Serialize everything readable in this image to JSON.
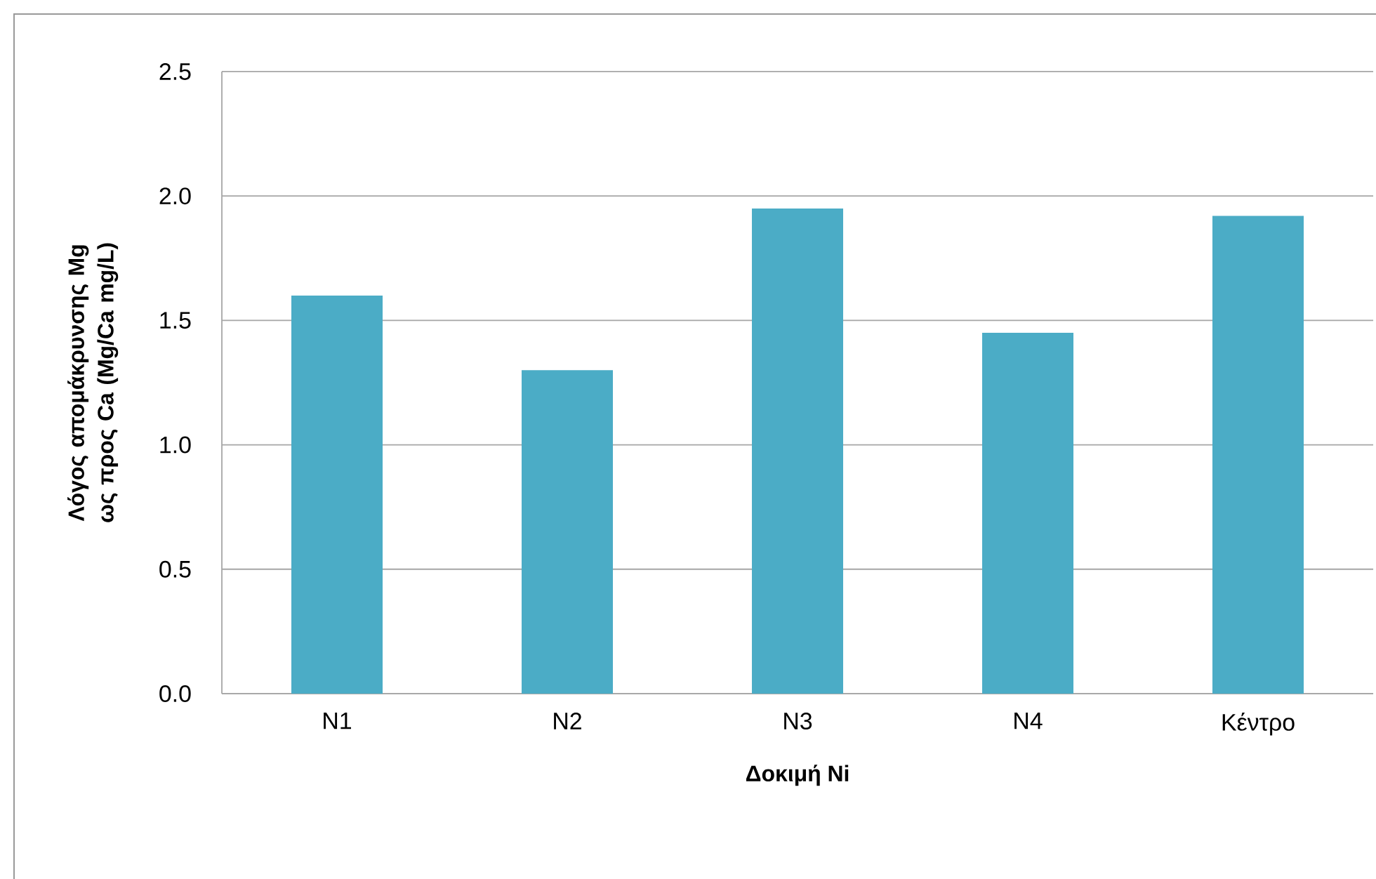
{
  "chart_data": {
    "type": "bar",
    "xlabel": "Δοκιμή Ni",
    "ylabel": "Λόγος απομάκρυνσης Mg  ως προς Ca (Mg/Ca mg/L)",
    "categories": [
      "N1",
      "N2",
      "N3",
      "N4",
      "Κέντρο"
    ],
    "values": [
      1.6,
      1.3,
      1.95,
      1.45,
      1.92
    ],
    "color": "#4bacc6",
    "ylim": [
      0,
      2.5
    ],
    "yticks": [
      {
        "value": 0,
        "label": "0.0"
      },
      {
        "value": 0.5,
        "label": "0.5"
      },
      {
        "value": 1,
        "label": "1.0"
      },
      {
        "value": 1.5,
        "label": "1.5"
      },
      {
        "value": 2,
        "label": "2.0"
      },
      {
        "value": 2.5,
        "label": "2.5"
      }
    ],
    "grid": "y"
  }
}
